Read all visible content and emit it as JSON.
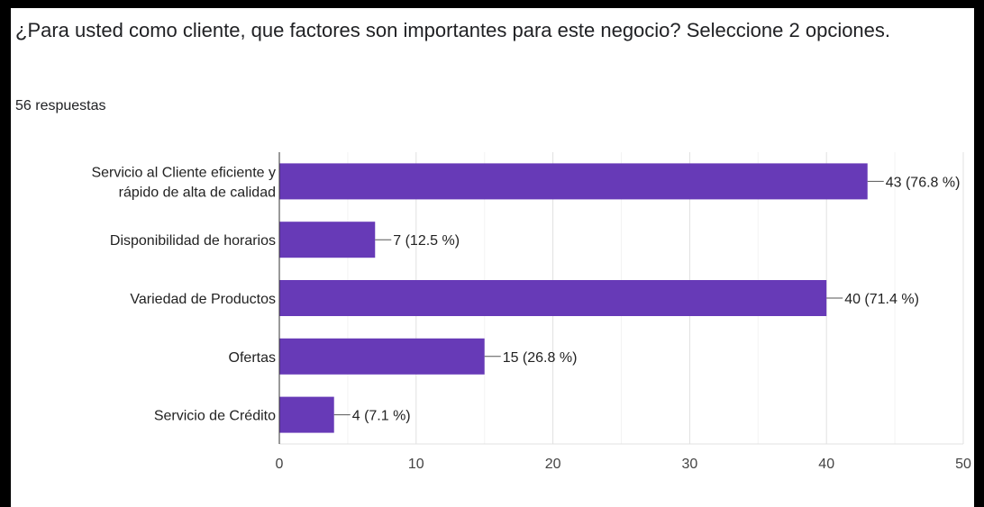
{
  "question": {
    "title": "¿Para usted como cliente, que factores son importantes para este negocio? Seleccione 2 opciones.",
    "responses": "56 respuestas"
  },
  "chart_data": {
    "type": "bar",
    "orientation": "horizontal",
    "categories": [
      [
        "Servicio al Cliente eficiente y",
        "rápido de alta de calidad"
      ],
      [
        "Disponibilidad de horarios"
      ],
      [
        "Variedad de Productos"
      ],
      [
        "Ofertas"
      ],
      [
        "Servicio de Crédito"
      ]
    ],
    "values": [
      43,
      7,
      40,
      15,
      4
    ],
    "data_labels": [
      "43 (76.8 %)",
      "7 (12.5 %)",
      "40 (71.4 %)",
      "15 (26.8 %)",
      "4 (7.1 %)"
    ],
    "xlim": [
      0,
      50
    ],
    "xticks": [
      0,
      10,
      20,
      30,
      40,
      50
    ],
    "bar_color": "#673ab7",
    "grid": true
  }
}
